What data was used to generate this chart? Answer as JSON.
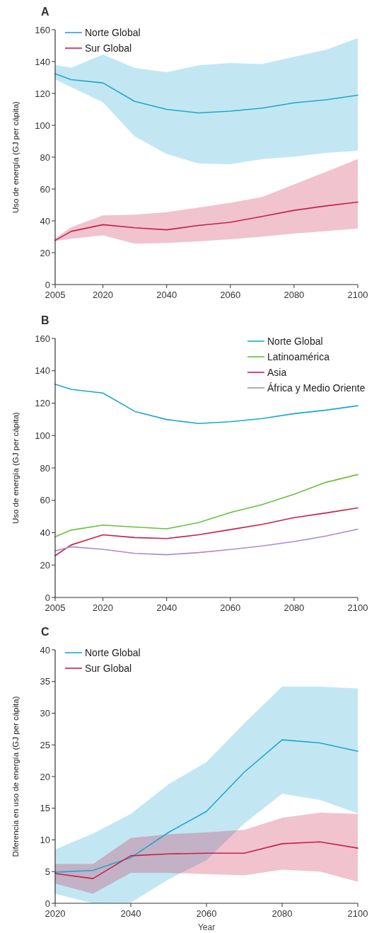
{
  "chart_data": [
    {
      "type": "line",
      "title": "A",
      "ylabel": "Uso de energía (GJ per cápita)",
      "x": [
        2005,
        2010,
        2020,
        2030,
        2040,
        2050,
        2060,
        2070,
        2080,
        2090,
        2100
      ],
      "xlim": [
        2005,
        2100
      ],
      "xticks": [
        2005,
        2020,
        2040,
        2060,
        2080,
        2100
      ],
      "ylim": [
        0,
        160
      ],
      "yticks": [
        0,
        20,
        40,
        60,
        80,
        100,
        120,
        140,
        160
      ],
      "grid": false,
      "legend": "top left",
      "series": [
        {
          "name": "Norte Global",
          "color": "#1ea6cf",
          "values": [
            132.3,
            128.7,
            126.6,
            115,
            110,
            107.8,
            108.9,
            110.8,
            114.1,
            116,
            118.9
          ],
          "lower": [
            128.8,
            124,
            114.4,
            93,
            82,
            76,
            75.6,
            78.8,
            80.3,
            82.7,
            84
          ],
          "upper": [
            137.9,
            136.1,
            144.5,
            136,
            133.3,
            137.7,
            139.1,
            138.4,
            143,
            147.5,
            154.8
          ]
        },
        {
          "name": "Sur Global",
          "color": "#c8204c",
          "values": [
            27.7,
            33.4,
            37.6,
            35.7,
            34.4,
            37.1,
            39.1,
            42.8,
            46.6,
            49.4,
            51.8
          ],
          "lower": [
            27.3,
            28.8,
            30.9,
            25.7,
            26.1,
            27.1,
            28.4,
            30.1,
            32,
            33.6,
            35.2
          ],
          "upper": [
            29,
            36,
            43.4,
            43.9,
            45.5,
            48.3,
            51.3,
            55,
            62.9,
            70.8,
            78.8
          ]
        }
      ]
    },
    {
      "type": "line",
      "title": "B",
      "ylabel": "Uso de energía (GJ per cápita)",
      "x": [
        2005,
        2010,
        2020,
        2030,
        2040,
        2050,
        2060,
        2070,
        2080,
        2090,
        2100
      ],
      "xlim": [
        2005,
        2100
      ],
      "xticks": [
        2005,
        2020,
        2040,
        2060,
        2080,
        2100
      ],
      "ylim": [
        0,
        160
      ],
      "yticks": [
        0,
        20,
        40,
        60,
        80,
        100,
        120,
        140,
        160
      ],
      "grid": false,
      "legend": "top right",
      "series": [
        {
          "name": "Norte Global",
          "color": "#1ea6cf",
          "values": [
            131.7,
            128.5,
            126.2,
            114.9,
            109.9,
            107.4,
            108.5,
            110.5,
            113.5,
            115.7,
            118.4
          ]
        },
        {
          "name": "Latinoamérica",
          "color": "#6cbf3d",
          "values": [
            37.5,
            41.6,
            44.7,
            43.5,
            42.4,
            46.2,
            52.5,
            57.4,
            63.7,
            71.1,
            75.9
          ]
        },
        {
          "name": "Asia",
          "color": "#c8204c",
          "values": [
            25.8,
            32.4,
            38.7,
            37,
            36.4,
            38.7,
            41.9,
            45.1,
            49.3,
            52.2,
            55.3
          ]
        },
        {
          "name": "África y Medio Oriente",
          "color": "#a98bd0",
          "values": [
            28.8,
            31.3,
            29.7,
            27.2,
            26.4,
            27.7,
            29.6,
            31.8,
            34.5,
            37.9,
            42.2
          ]
        }
      ]
    },
    {
      "type": "line",
      "title": "C",
      "xlabel": "Year",
      "ylabel": "Diferencia en uso de energía (GJ per cápita)",
      "x": [
        2020,
        2030,
        2040,
        2050,
        2060,
        2070,
        2080,
        2090,
        2100
      ],
      "xlim": [
        2020,
        2100
      ],
      "xticks": [
        2020,
        2040,
        2060,
        2080,
        2100
      ],
      "ylim": [
        0,
        40
      ],
      "yticks": [
        0,
        5,
        10,
        15,
        20,
        25,
        30,
        35,
        40
      ],
      "grid": false,
      "legend": "top left",
      "series": [
        {
          "name": "Norte Global",
          "color": "#1ea6cf",
          "values": [
            4.9,
            5.2,
            7.2,
            11.2,
            14.5,
            20.7,
            25.8,
            25.3,
            24
          ],
          "lower": [
            1.5,
            0,
            0.1,
            3.8,
            6.8,
            12.6,
            17.3,
            16.3,
            14.2
          ],
          "upper": [
            8.5,
            11,
            14.1,
            18.8,
            22.3,
            28.4,
            34.2,
            34.2,
            33.9
          ]
        },
        {
          "name": "Sur Global",
          "color": "#c8204c",
          "values": [
            4.7,
            3.9,
            7.5,
            7.8,
            7.9,
            7.9,
            9.4,
            9.7,
            8.7
          ],
          "lower": [
            3.1,
            1.5,
            4.8,
            4.8,
            4.6,
            4.4,
            5.3,
            5,
            3.4
          ],
          "upper": [
            6.2,
            6.2,
            10.3,
            10.9,
            11.2,
            11.6,
            13.5,
            14.3,
            14.1
          ]
        }
      ]
    }
  ]
}
